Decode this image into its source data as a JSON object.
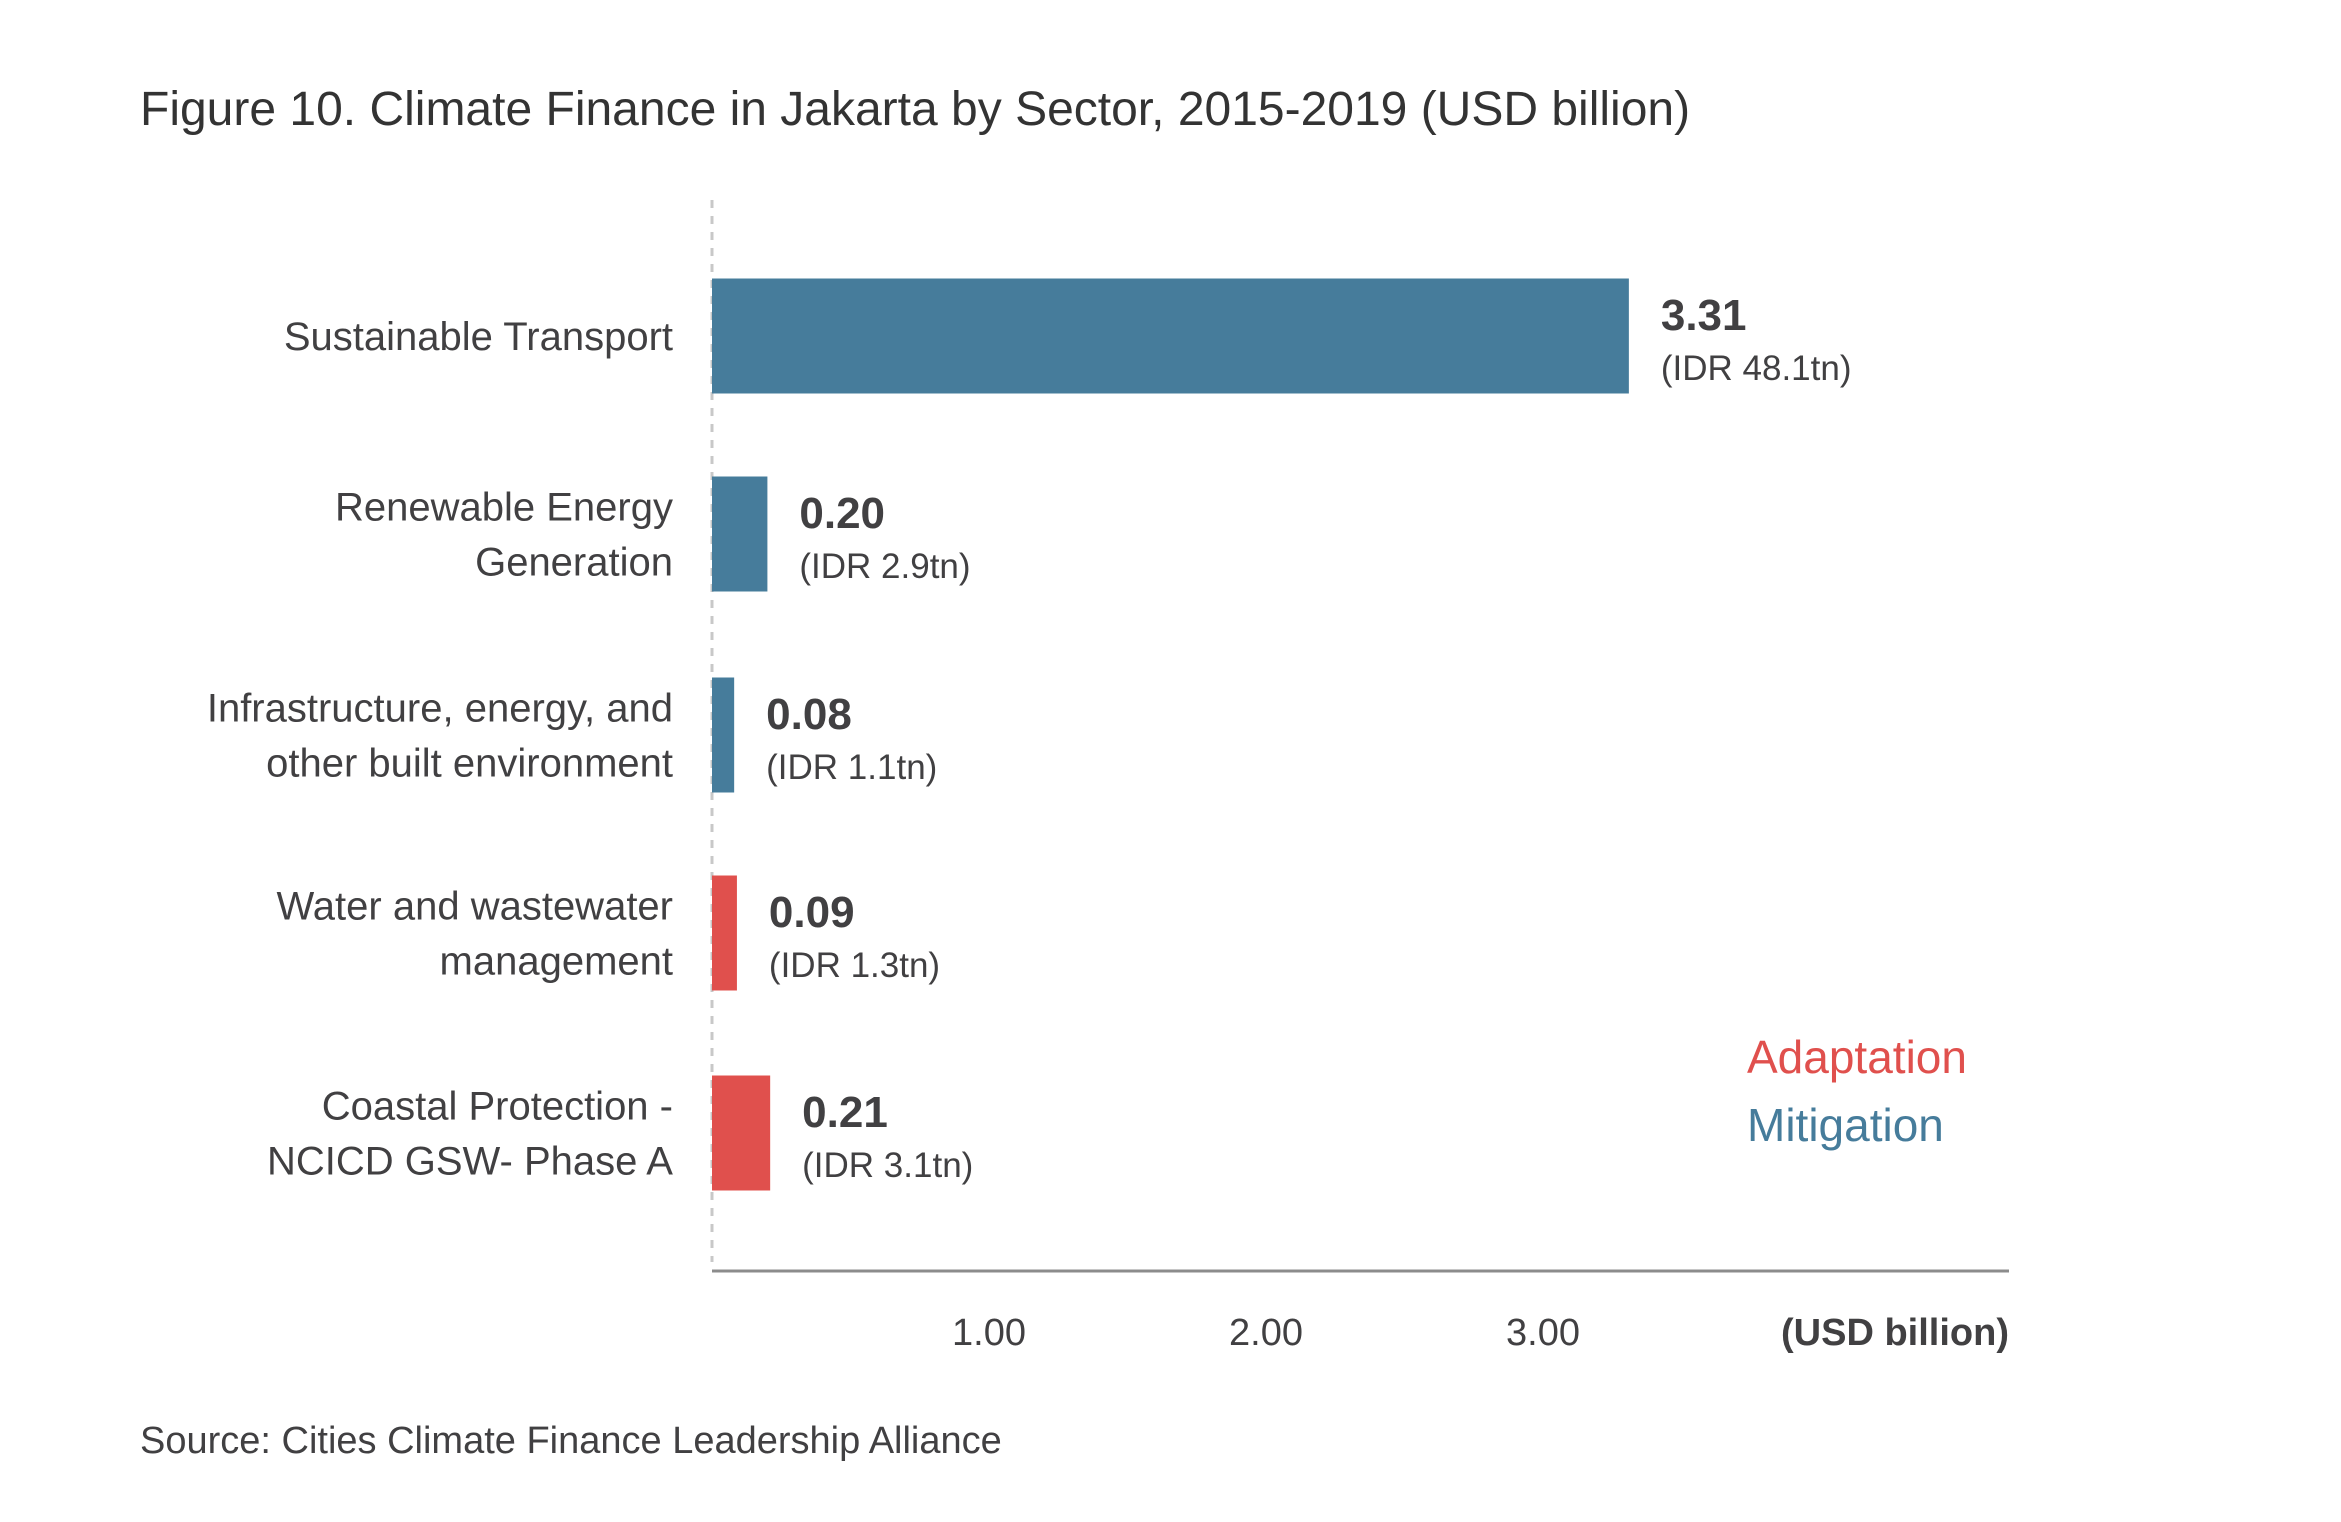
{
  "chart_data": {
    "type": "bar",
    "orientation": "horizontal",
    "title": "Figure 10. Climate Finance in Jakarta by Sector, 2015-2019 (USD billion)",
    "categories": [
      [
        "Sustainable Transport"
      ],
      [
        "Renewable Energy",
        "Generation"
      ],
      [
        "Infrastructure, energy, and",
        "other built environment"
      ],
      [
        "Water and wastewater",
        "management"
      ],
      [
        "Coastal Protection -",
        "NCICD GSW- Phase A"
      ]
    ],
    "values": [
      3.31,
      0.2,
      0.08,
      0.09,
      0.21
    ],
    "value_labels": [
      "3.31",
      "0.20",
      "0.08",
      "0.09",
      "0.21"
    ],
    "sub_labels": [
      "(IDR 48.1tn)",
      "(IDR 2.9tn)",
      "(IDR 1.1tn)",
      "(IDR 1.3tn)",
      "(IDR 3.1tn)"
    ],
    "groups": [
      "Mitigation",
      "Mitigation",
      "Mitigation",
      "Adaptation",
      "Adaptation"
    ],
    "x_ticks": [
      1,
      2,
      3
    ],
    "x_tick_labels": [
      "1.00",
      "2.00",
      "3.00"
    ],
    "xlabel": "(USD billion)",
    "xlim": [
      0,
      4.6
    ],
    "grid": false,
    "legend": {
      "position": "bottom-right",
      "entries": [
        {
          "name": "Adaptation",
          "color": "#E0504D"
        },
        {
          "name": "Mitigation",
          "color": "#467C9B"
        }
      ]
    },
    "colors": {
      "Mitigation": "#467C9B",
      "Adaptation": "#E0504D",
      "axis": "#8C8C8C",
      "baseline": "#C8C8C8"
    },
    "source": "Source: Cities Climate Finance Leadership Alliance"
  }
}
